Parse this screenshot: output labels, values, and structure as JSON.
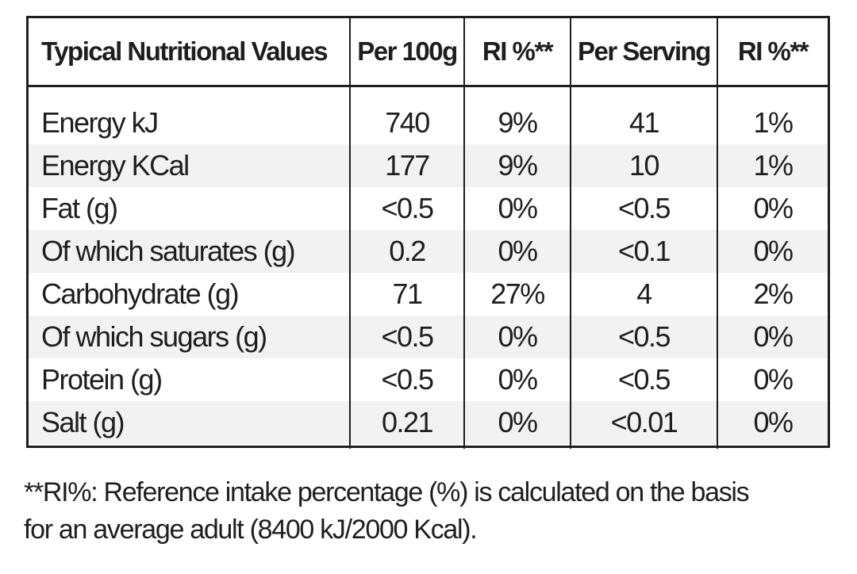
{
  "table": {
    "headers": [
      "Typical Nutritional Values",
      "Per 100g",
      "RI %**",
      "Per Serving",
      "RI %**"
    ],
    "rows": [
      [
        "Energy kJ",
        "740",
        "9%",
        "41",
        "1%"
      ],
      [
        "Energy KCal",
        "177",
        "9%",
        "10",
        "1%"
      ],
      [
        "Fat (g)",
        "<0.5",
        "0%",
        "<0.5",
        "0%"
      ],
      [
        "Of which saturates (g)",
        "0.2",
        "0%",
        "<0.1",
        "0%"
      ],
      [
        "Carbohydrate (g)",
        "71",
        "27%",
        "4",
        "2%"
      ],
      [
        "Of which sugars (g)",
        "<0.5",
        "0%",
        "<0.5",
        "0%"
      ],
      [
        "Protein (g)",
        "<0.5",
        "0%",
        "<0.5",
        "0%"
      ],
      [
        "Salt (g)",
        "0.21",
        "0%",
        "<0.01",
        "0%"
      ]
    ]
  },
  "footnote": {
    "line1": "**RI%: Reference intake percentage (%) is calculated on the basis",
    "line2": "for an average adult (8400 kJ/2000 Kcal)."
  },
  "colors": {
    "text": "#1e1e1e",
    "border": "#1e1e1e",
    "row_shade": "#f2f2f2",
    "background": "#ffffff"
  }
}
